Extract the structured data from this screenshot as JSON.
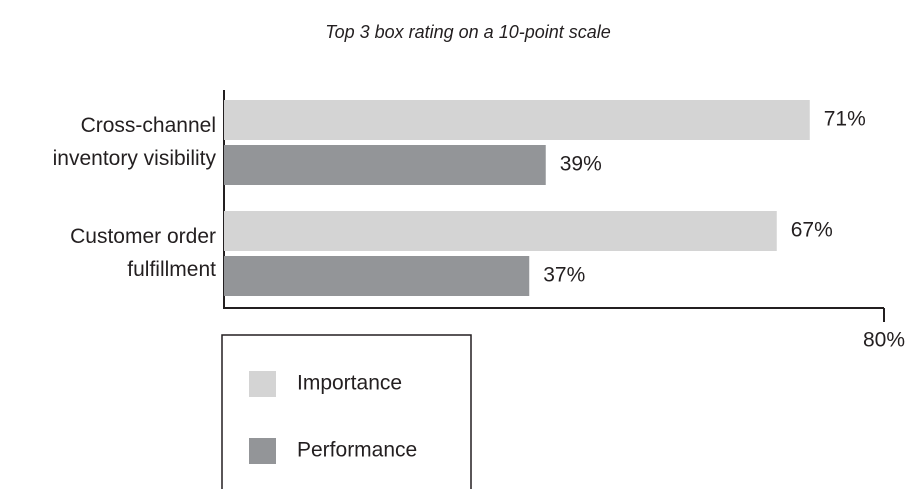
{
  "chart_data": {
    "type": "bar",
    "orientation": "horizontal",
    "title": "Top 3 box rating on a 10-point scale",
    "categories": [
      "Cross-channel\ninventory visibility",
      "Customer order\nfulfillment"
    ],
    "series": [
      {
        "name": "Importance",
        "color": "#d4d4d4",
        "values": [
          71,
          67
        ],
        "value_labels": [
          "71%",
          "67%"
        ]
      },
      {
        "name": "Performance",
        "color": "#939598",
        "values": [
          39,
          37
        ],
        "value_labels": [
          "39%",
          "37%"
        ]
      }
    ],
    "xlim": [
      0,
      80
    ],
    "xticks": [
      {
        "value": 80,
        "label": "80%"
      }
    ],
    "legend": "bottom-left"
  }
}
